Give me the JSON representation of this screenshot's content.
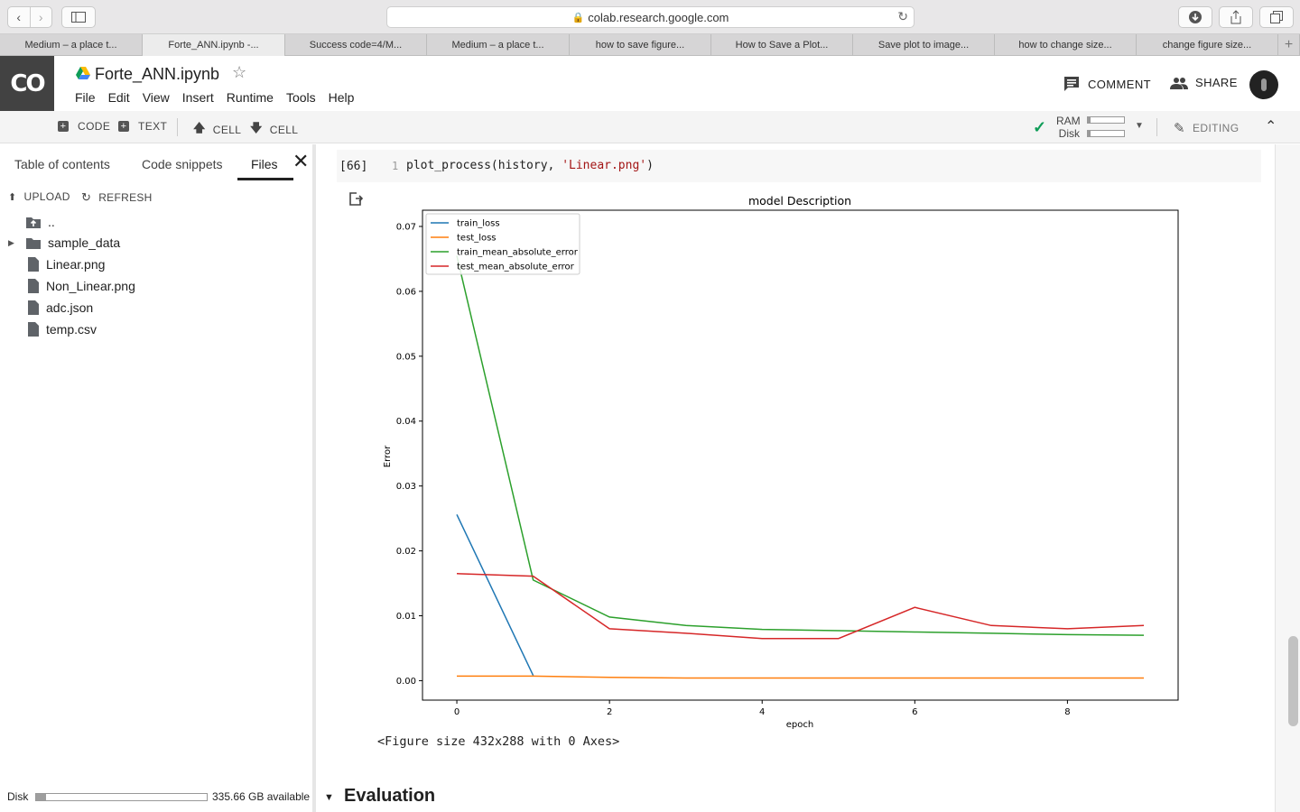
{
  "browser": {
    "url": "colab.research.google.com",
    "tabs": [
      {
        "label": "Medium – a place t...",
        "active": false
      },
      {
        "label": "Forte_ANN.ipynb -...",
        "active": true
      },
      {
        "label": "Success code=4/M...",
        "active": false
      },
      {
        "label": "Medium – a place t...",
        "active": false
      },
      {
        "label": "how to save figure...",
        "active": false
      },
      {
        "label": "How to Save a Plot...",
        "active": false
      },
      {
        "label": "Save plot to image...",
        "active": false
      },
      {
        "label": "how to change size...",
        "active": false
      },
      {
        "label": "change figure size...",
        "active": false
      }
    ],
    "new_tab_label": "+"
  },
  "colab": {
    "logo_text": "CO",
    "notebook_title": "Forte_ANN.ipynb",
    "menu": [
      "File",
      "Edit",
      "View",
      "Insert",
      "Runtime",
      "Tools",
      "Help"
    ],
    "comment_label": "COMMENT",
    "share_label": "SHARE"
  },
  "toolbar": {
    "code_label": "CODE",
    "text_label": "TEXT",
    "cell_up_label": "CELL",
    "cell_down_label": "CELL",
    "ram_label": "RAM",
    "disk_label": "Disk",
    "editing_label": "EDITING"
  },
  "sidebar": {
    "tabs": [
      "Table of contents",
      "Code snippets",
      "Files"
    ],
    "active_tab": "Files",
    "upload_label": "UPLOAD",
    "refresh_label": "REFRESH",
    "files": [
      {
        "name": "..",
        "type": "parent"
      },
      {
        "name": "sample_data",
        "type": "folder"
      },
      {
        "name": "Linear.png",
        "type": "file"
      },
      {
        "name": "Non_Linear.png",
        "type": "file"
      },
      {
        "name": "adc.json",
        "type": "file"
      },
      {
        "name": "temp.csv",
        "type": "file"
      }
    ],
    "disk_label": "Disk",
    "disk_available": "335.66 GB available",
    "disk_used_fraction": 0.06
  },
  "cell": {
    "exec_count": "[66]",
    "line_number": "1",
    "code_prefix": "plot_process(history, ",
    "code_string": "'Linear.png'",
    "code_suffix": ")",
    "output_text": "<Figure size 432x288 with 0 Axes>"
  },
  "section": {
    "title": "Evaluation"
  },
  "chart_data": {
    "type": "line",
    "title": "model Description",
    "xlabel": "epoch",
    "ylabel": "Error",
    "xlim": [
      -0.45,
      9.45
    ],
    "ylim": [
      -0.003,
      0.0725
    ],
    "xticks": [
      0,
      2,
      4,
      6,
      8
    ],
    "yticks": [
      0.0,
      0.01,
      0.02,
      0.03,
      0.04,
      0.05,
      0.06,
      0.07
    ],
    "ytick_labels": [
      "0.00",
      "0.01",
      "0.02",
      "0.03",
      "0.04",
      "0.05",
      "0.06",
      "0.07"
    ],
    "legend_position": "top-left",
    "grid": false,
    "x": [
      0,
      1,
      2,
      3,
      4,
      5,
      6,
      7,
      8,
      9
    ],
    "series": [
      {
        "name": "train_loss",
        "color": "#1f77b4",
        "values": [
          0.0256,
          0.0008,
          null,
          null,
          null,
          null,
          null,
          null,
          null,
          null
        ]
      },
      {
        "name": "test_loss",
        "color": "#ff7f0e",
        "values": [
          0.0007,
          0.0007,
          0.0005,
          0.0004,
          0.0004,
          0.0004,
          0.0004,
          0.0004,
          0.0004,
          0.0004
        ]
      },
      {
        "name": "train_mean_absolute_error",
        "color": "#2ca02c",
        "values": [
          0.0655,
          0.0155,
          0.0098,
          0.0085,
          0.0079,
          0.0077,
          0.0075,
          0.0073,
          0.0071,
          0.007
        ]
      },
      {
        "name": "test_mean_absolute_error",
        "color": "#d62728",
        "values": [
          0.0165,
          0.0161,
          0.008,
          0.0073,
          0.0065,
          0.0065,
          0.0113,
          0.0085,
          0.008,
          0.0085
        ]
      }
    ]
  }
}
